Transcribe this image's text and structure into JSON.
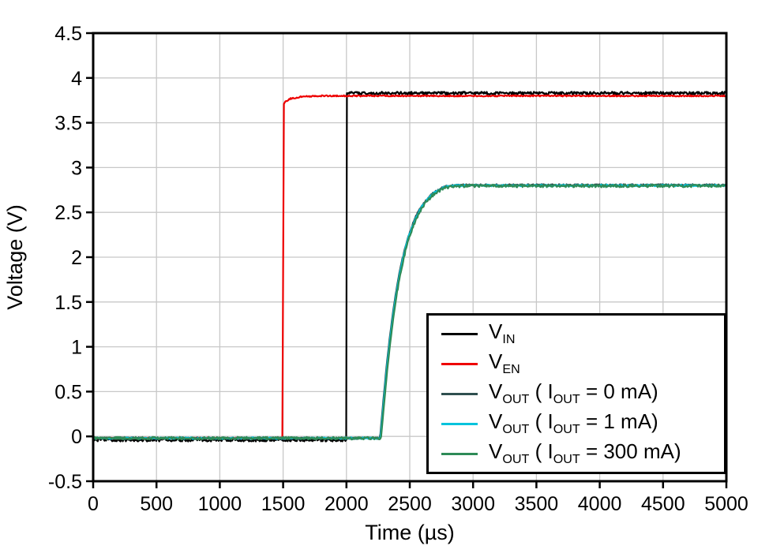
{
  "chart_data": {
    "type": "line",
    "title": "",
    "xlabel": "Time (µs)",
    "ylabel": "Voltage (V)",
    "xlim": [
      0,
      5000
    ],
    "ylim": [
      -0.5,
      4.5
    ],
    "xticks": [
      0,
      500,
      1000,
      1500,
      2000,
      2500,
      3000,
      3500,
      4000,
      4500,
      5000
    ],
    "yticks": [
      -0.5,
      0,
      0.5,
      1,
      1.5,
      2,
      2.5,
      3,
      3.5,
      4,
      4.5
    ],
    "grid": true,
    "grid_color": "#c8c8c8",
    "axis_color": "#000000",
    "background_color": "#ffffff",
    "legend_position": "lower right",
    "series": [
      {
        "id": "vin",
        "name": "VIN",
        "color": "#000000",
        "noise": 0.016,
        "legend": [
          {
            "t": "V"
          },
          {
            "s": "IN"
          }
        ],
        "points": [
          [
            0,
            -0.04
          ],
          [
            1998,
            -0.04
          ],
          [
            2002,
            3.83
          ],
          [
            5000,
            3.83
          ]
        ]
      },
      {
        "id": "ven",
        "name": "VEN",
        "color": "#ee0000",
        "noise": 0.007,
        "legend": [
          {
            "t": "V"
          },
          {
            "s": "EN"
          }
        ],
        "points": [
          [
            0,
            -0.02
          ],
          [
            1498,
            -0.02
          ],
          [
            1502,
            3.7
          ],
          [
            1520,
            3.74
          ],
          [
            1560,
            3.77
          ],
          [
            1640,
            3.79
          ],
          [
            1800,
            3.8
          ],
          [
            5000,
            3.8
          ]
        ]
      },
      {
        "id": "vout-0ma",
        "name": "VOUT (IOUT = 0 mA)",
        "color": "#2f4f4f",
        "noise": 0.01,
        "legend": [
          {
            "t": "V"
          },
          {
            "s": "OUT"
          },
          {
            "t": " ( I"
          },
          {
            "s": "OUT"
          },
          {
            "t": " = 0 mA)"
          }
        ],
        "points": [
          [
            0,
            -0.02
          ],
          [
            2265,
            -0.02
          ],
          [
            2290,
            0.38
          ],
          [
            2315,
            0.76
          ],
          [
            2340,
            1.08
          ],
          [
            2365,
            1.36
          ],
          [
            2390,
            1.6
          ],
          [
            2415,
            1.8
          ],
          [
            2440,
            1.97
          ],
          [
            2465,
            2.12
          ],
          [
            2490,
            2.24
          ],
          [
            2515,
            2.34
          ],
          [
            2540,
            2.43
          ],
          [
            2565,
            2.5
          ],
          [
            2590,
            2.56
          ],
          [
            2615,
            2.61
          ],
          [
            2640,
            2.65
          ],
          [
            2665,
            2.69
          ],
          [
            2690,
            2.72
          ],
          [
            2715,
            2.74
          ],
          [
            2740,
            2.76
          ],
          [
            2765,
            2.78
          ],
          [
            2790,
            2.79
          ],
          [
            2840,
            2.8
          ],
          [
            2940,
            2.805
          ],
          [
            5000,
            2.805
          ]
        ]
      },
      {
        "id": "vout-1ma",
        "name": "VOUT (IOUT = 1 mA)",
        "color": "#00c3dc",
        "noise": 0.01,
        "legend": [
          {
            "t": "V"
          },
          {
            "s": "OUT"
          },
          {
            "t": " ( I"
          },
          {
            "s": "OUT"
          },
          {
            "t": " = 1 mA)"
          }
        ],
        "points": [
          [
            0,
            -0.02
          ],
          [
            2269,
            -0.02
          ],
          [
            2294,
            0.38
          ],
          [
            2319,
            0.76
          ],
          [
            2344,
            1.08
          ],
          [
            2369,
            1.36
          ],
          [
            2394,
            1.6
          ],
          [
            2419,
            1.8
          ],
          [
            2444,
            1.97
          ],
          [
            2469,
            2.12
          ],
          [
            2494,
            2.24
          ],
          [
            2519,
            2.34
          ],
          [
            2544,
            2.43
          ],
          [
            2569,
            2.5
          ],
          [
            2594,
            2.56
          ],
          [
            2619,
            2.61
          ],
          [
            2644,
            2.65
          ],
          [
            2669,
            2.69
          ],
          [
            2694,
            2.72
          ],
          [
            2719,
            2.74
          ],
          [
            2744,
            2.76
          ],
          [
            2769,
            2.78
          ],
          [
            2794,
            2.79
          ],
          [
            2844,
            2.8
          ],
          [
            2944,
            2.8
          ],
          [
            5000,
            2.8
          ]
        ]
      },
      {
        "id": "vout-300ma",
        "name": "VOUT (IOUT = 300 mA)",
        "color": "#2e8b57",
        "noise": 0.015,
        "legend": [
          {
            "t": "V"
          },
          {
            "s": "OUT"
          },
          {
            "t": " ( I"
          },
          {
            "s": "OUT"
          },
          {
            "t": " = 300 mA)"
          }
        ],
        "points": [
          [
            0,
            -0.02
          ],
          [
            2273,
            -0.02
          ],
          [
            2298,
            0.37
          ],
          [
            2323,
            0.75
          ],
          [
            2348,
            1.07
          ],
          [
            2373,
            1.35
          ],
          [
            2398,
            1.59
          ],
          [
            2423,
            1.79
          ],
          [
            2448,
            1.96
          ],
          [
            2473,
            2.11
          ],
          [
            2498,
            2.23
          ],
          [
            2523,
            2.33
          ],
          [
            2548,
            2.42
          ],
          [
            2573,
            2.49
          ],
          [
            2598,
            2.55
          ],
          [
            2623,
            2.6
          ],
          [
            2648,
            2.64
          ],
          [
            2673,
            2.68
          ],
          [
            2698,
            2.71
          ],
          [
            2723,
            2.73
          ],
          [
            2748,
            2.75
          ],
          [
            2773,
            2.77
          ],
          [
            2798,
            2.78
          ],
          [
            2848,
            2.79
          ],
          [
            2948,
            2.795
          ],
          [
            5000,
            2.795
          ]
        ]
      }
    ]
  }
}
